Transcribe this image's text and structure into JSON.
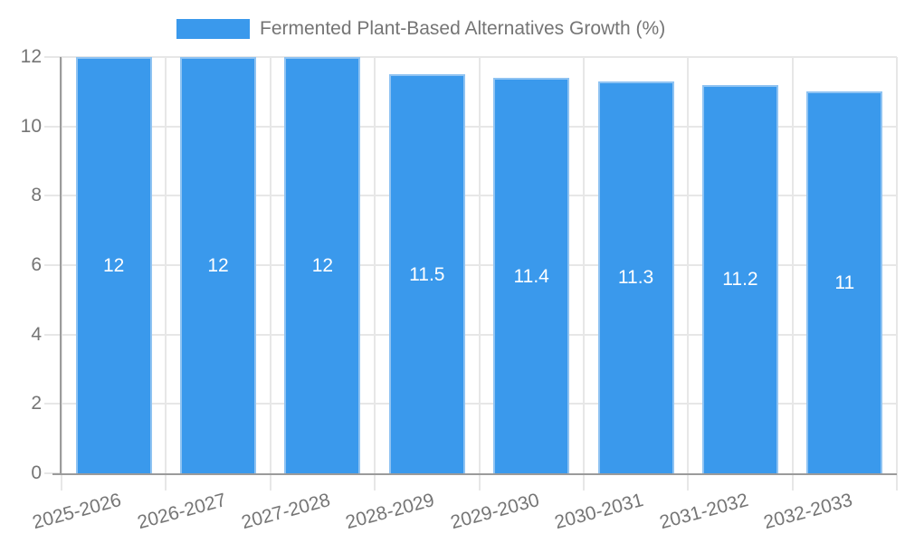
{
  "legend": {
    "label": "Fermented Plant-Based Alternatives Growth (%)"
  },
  "chart_data": {
    "type": "bar",
    "title": "Fermented Plant-Based Alternatives Growth (%)",
    "legend_position": "top",
    "grid": true,
    "categories": [
      "2025-2026",
      "2026-2027",
      "2027-2028",
      "2028-2029",
      "2029-2030",
      "2030-2031",
      "2031-2032",
      "2032-2033"
    ],
    "series": [
      {
        "name": "Fermented Plant-Based Alternatives Growth (%)",
        "values": [
          12,
          12,
          12,
          11.5,
          11.4,
          11.3,
          11.2,
          11
        ],
        "value_labels": [
          "12",
          "12",
          "12",
          "11.5",
          "11.4",
          "11.3",
          "11.2",
          "11"
        ]
      }
    ],
    "xlabel": "",
    "ylabel": "",
    "ylim": [
      0,
      12
    ],
    "yticks": [
      0,
      2,
      4,
      6,
      8,
      10,
      12
    ],
    "colors": {
      "bar": "#3A99EC",
      "bar_border": "#8FC3F2",
      "grid": "#E7E7E7",
      "axis": "#9B9B9B",
      "text": "#757575",
      "bar_label": "#FFFFFF",
      "background": "#FFFFFF"
    }
  }
}
